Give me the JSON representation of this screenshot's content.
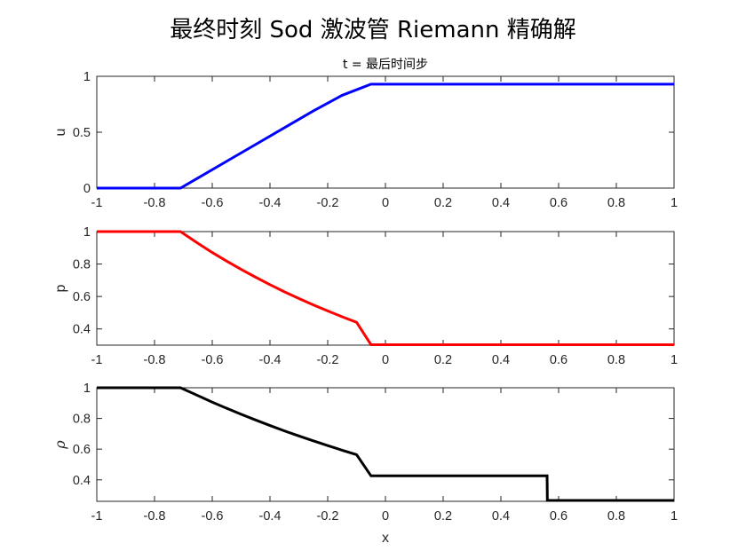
{
  "title": "最终时刻 Sod 激波管 Riemann 精确解",
  "subtitle": "t = 最后时间步",
  "xlabel": "x",
  "chart_data": [
    {
      "type": "line",
      "ylabel": "u",
      "ylabel_style": "normal",
      "color": "#0000ff",
      "xlim": [
        -1,
        1
      ],
      "ylim": [
        0,
        1
      ],
      "xticks": [
        -1,
        -0.8,
        -0.6,
        -0.4,
        -0.2,
        0,
        0.2,
        0.4,
        0.6,
        0.8,
        1
      ],
      "yticks": [
        0,
        0.5,
        1
      ],
      "x": [
        -1,
        -0.71,
        -0.65,
        -0.55,
        -0.45,
        -0.35,
        -0.25,
        -0.15,
        -0.05,
        0.56,
        0.561,
        1
      ],
      "y": [
        0,
        0,
        0.09,
        0.24,
        0.39,
        0.54,
        0.69,
        0.83,
        0.93,
        0.93,
        0.93,
        0.93
      ]
    },
    {
      "type": "line",
      "ylabel": "p",
      "ylabel_style": "normal",
      "color": "#ff0000",
      "xlim": [
        -1,
        1
      ],
      "ylim": [
        0.3,
        1
      ],
      "xticks": [
        -1,
        -0.8,
        -0.6,
        -0.4,
        -0.2,
        0,
        0.2,
        0.4,
        0.6,
        0.8,
        1
      ],
      "yticks": [
        0.4,
        0.6,
        0.8,
        1
      ],
      "x": [
        -1,
        -0.71,
        -0.65,
        -0.6,
        -0.55,
        -0.5,
        -0.45,
        -0.4,
        -0.35,
        -0.3,
        -0.25,
        -0.2,
        -0.15,
        -0.1,
        -0.05,
        0.56,
        0.561,
        1
      ],
      "y": [
        1,
        1,
        0.928,
        0.871,
        0.818,
        0.767,
        0.719,
        0.673,
        0.629,
        0.588,
        0.548,
        0.511,
        0.475,
        0.441,
        0.303,
        0.303,
        0.303,
        0.303
      ]
    },
    {
      "type": "line",
      "ylabel": "ρ",
      "ylabel_style": "italic",
      "color": "#000000",
      "xlim": [
        -1,
        1
      ],
      "ylim": [
        0.26,
        1
      ],
      "xticks": [
        -1,
        -0.8,
        -0.6,
        -0.4,
        -0.2,
        0,
        0.2,
        0.4,
        0.6,
        0.8,
        1
      ],
      "yticks": [
        0.4,
        0.6,
        0.8,
        1
      ],
      "x": [
        -1,
        -0.71,
        -0.65,
        -0.6,
        -0.55,
        -0.5,
        -0.45,
        -0.4,
        -0.35,
        -0.3,
        -0.25,
        -0.2,
        -0.15,
        -0.1,
        -0.05,
        0.56,
        0.561,
        1
      ],
      "y": [
        1,
        1,
        0.949,
        0.906,
        0.866,
        0.827,
        0.79,
        0.754,
        0.719,
        0.686,
        0.654,
        0.623,
        0.593,
        0.564,
        0.426,
        0.426,
        0.266,
        0.266
      ]
    }
  ]
}
